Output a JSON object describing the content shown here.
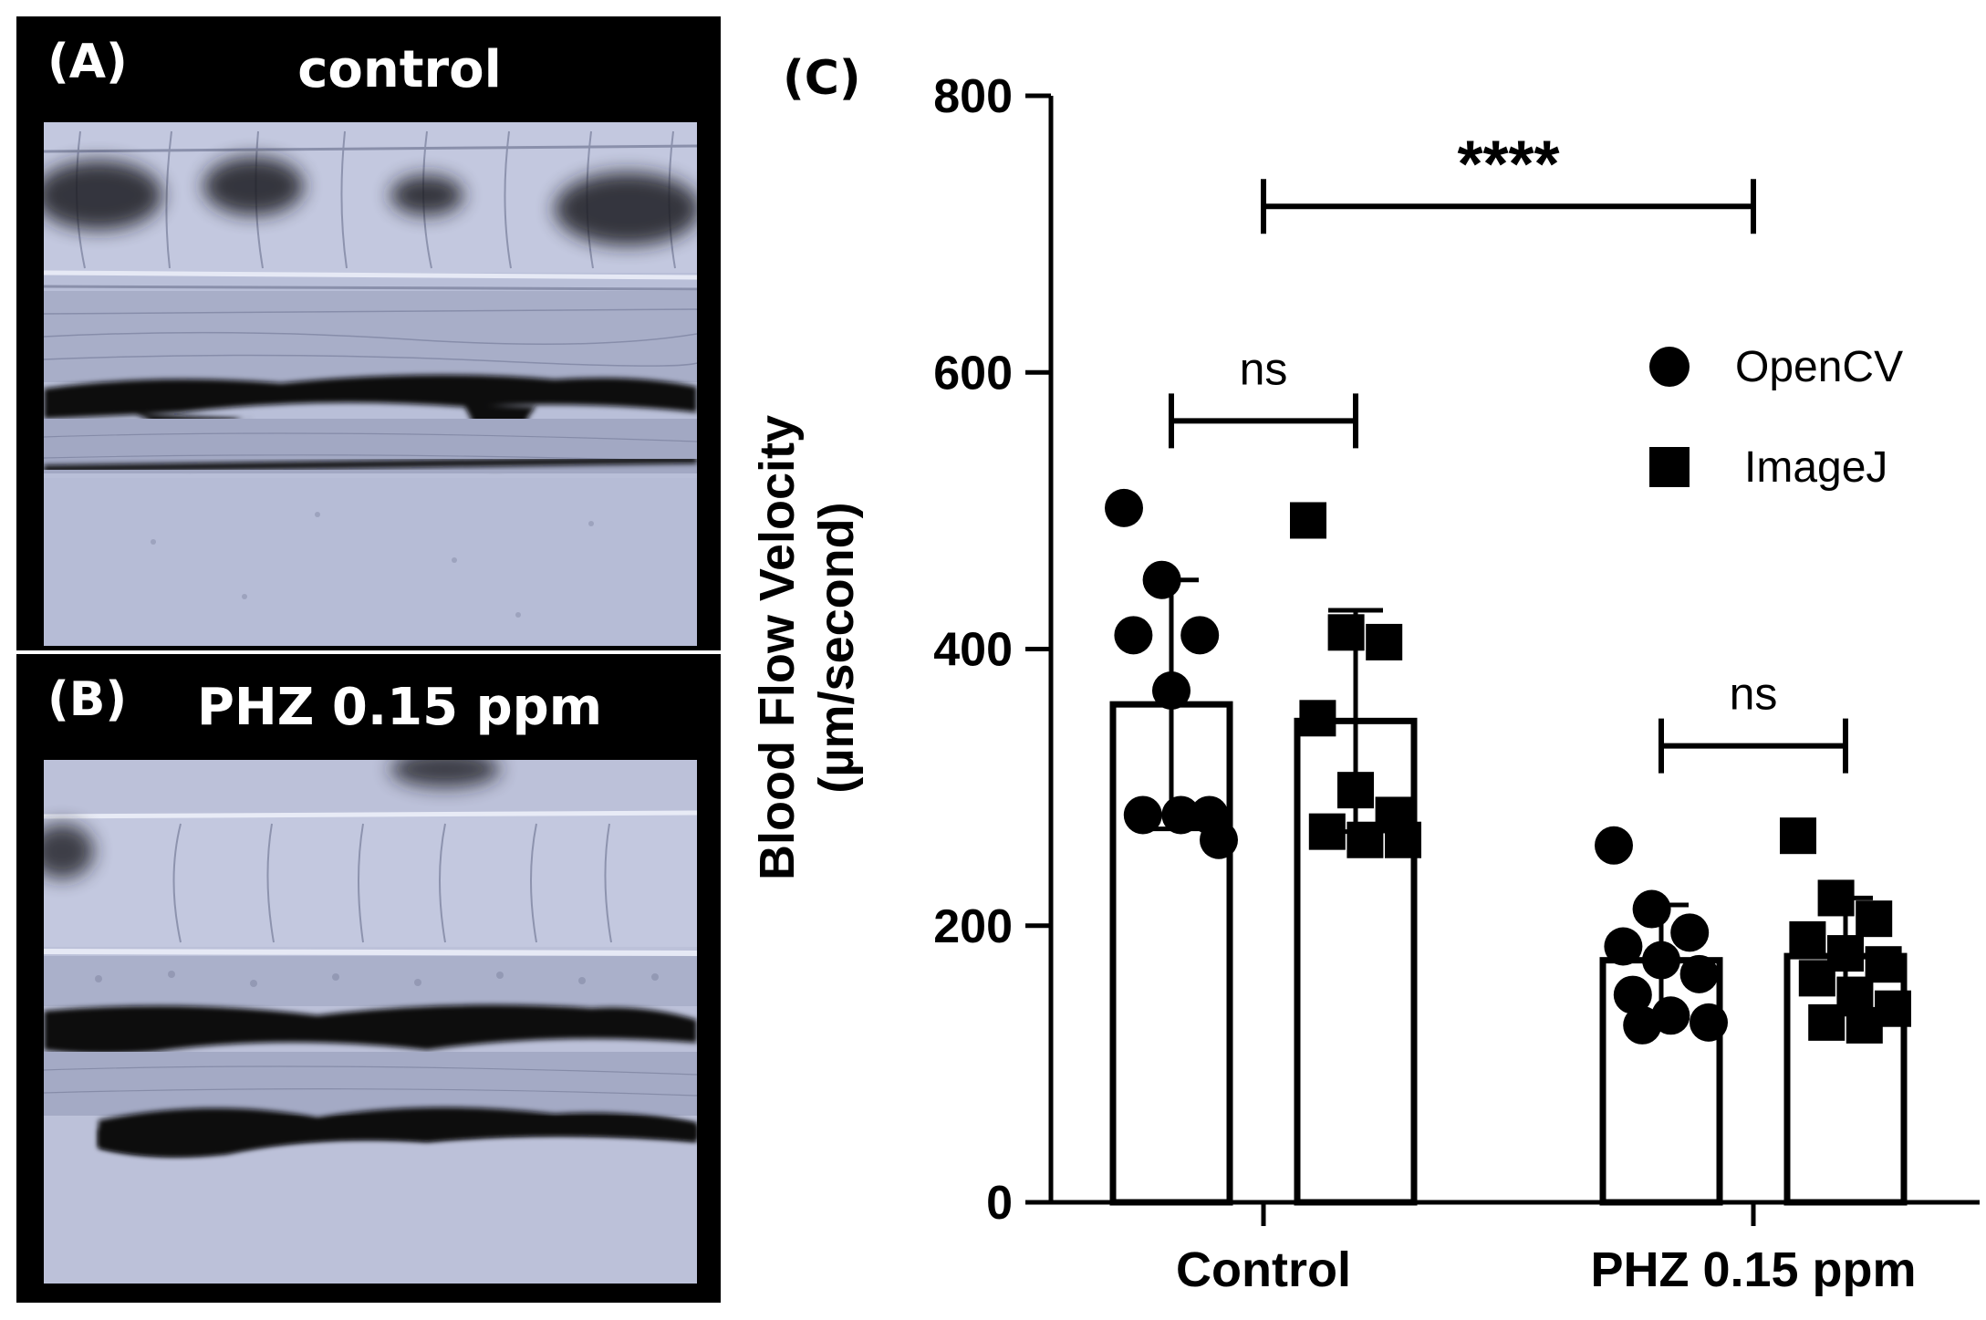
{
  "panels": {
    "a": {
      "letter": "(A)",
      "title": "control"
    },
    "b": {
      "letter": "(B)",
      "title": "PHZ 0.15 ppm"
    },
    "c": {
      "letter": "(C)"
    }
  },
  "colors": {
    "tissue": "#b9bfd8",
    "tissue_dark": "#9aa0bc",
    "blood": "#0a0a10"
  },
  "chart_data": {
    "type": "bar",
    "ylabel": "Blood Flow Velocity",
    "ylabel2": "(µm/second)",
    "ylim": [
      0,
      800
    ],
    "yticks": [
      0,
      200,
      400,
      600,
      800
    ],
    "categories": [
      "Control",
      "PHZ 0.15 ppm"
    ],
    "series": [
      {
        "name": "OpenCV",
        "marker": "circle",
        "values": [
          360,
          175
        ],
        "sd": [
          90,
          40
        ],
        "points": [
          [
            502,
            450,
            410,
            410,
            370,
            280,
            280,
            280,
            262
          ],
          [
            258,
            212,
            195,
            185,
            175,
            165,
            150,
            135,
            130,
            128
          ]
        ]
      },
      {
        "name": "ImageJ",
        "marker": "square",
        "values": [
          348,
          178
        ],
        "sd": [
          80,
          42
        ],
        "points": [
          [
            493,
            412,
            405,
            350,
            298,
            280,
            268,
            262,
            262
          ],
          [
            265,
            220,
            205,
            190,
            180,
            172,
            162,
            150,
            140,
            130,
            128
          ]
        ]
      }
    ],
    "comparisons": [
      {
        "label": "ns",
        "y": 565,
        "from": [
          0,
          0
        ],
        "to": [
          0,
          1
        ]
      },
      {
        "label": "ns",
        "y": 330,
        "from": [
          1,
          0
        ],
        "to": [
          1,
          1
        ]
      },
      {
        "label": "****",
        "y": 720,
        "from": [
          0,
          "center"
        ],
        "to": [
          1,
          "center"
        ]
      }
    ]
  }
}
